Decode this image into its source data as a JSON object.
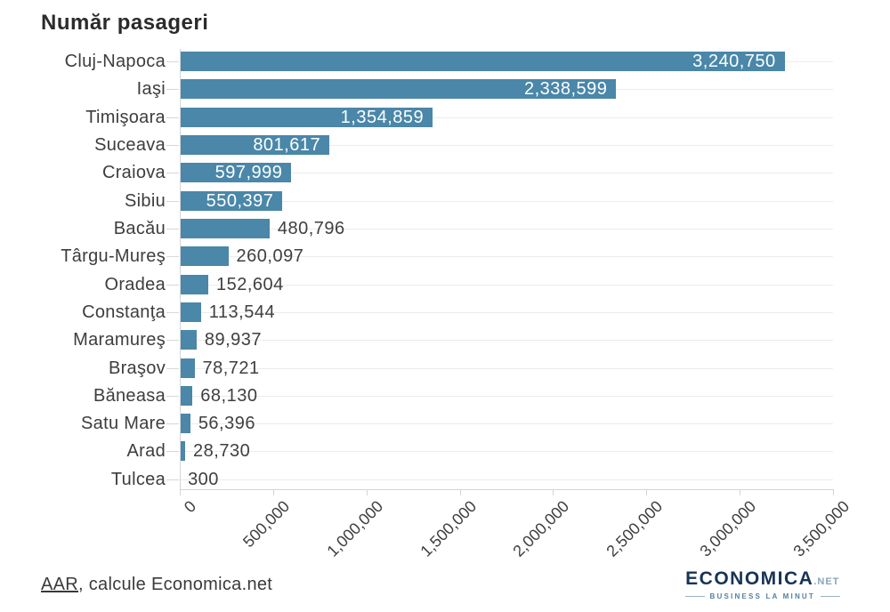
{
  "title": "Număr pasageri",
  "source": {
    "name": "AAR",
    "suffix": ", calcule Economica.net"
  },
  "logo": {
    "brand": "ECONOMICA",
    "net": ".NET",
    "tagline": "BUSINESS LA MINUT"
  },
  "chart_data": {
    "type": "bar",
    "orientation": "horizontal",
    "title": "Număr pasageri",
    "xlabel": "",
    "ylabel": "",
    "categories": [
      "Cluj-Napoca",
      "Iaşi",
      "Timişoara",
      "Suceava",
      "Craiova",
      "Sibiu",
      "Bacău",
      "Târgu-Mureş",
      "Oradea",
      "Constanţa",
      "Maramureş",
      "Braşov",
      "Băneasa",
      "Satu Mare",
      "Arad",
      "Tulcea"
    ],
    "values": [
      3240750,
      2338599,
      1354859,
      801617,
      597999,
      550397,
      480796,
      260097,
      152604,
      113544,
      89937,
      78721,
      68130,
      56396,
      28730,
      300
    ],
    "value_labels": [
      "3,240,750",
      "2,338,599",
      "1,354,859",
      "801,617",
      "597,999",
      "550,397",
      "480,796",
      "260,097",
      "152,604",
      "113,544",
      "89,937",
      "78,721",
      "68,130",
      "56,396",
      "28,730",
      "300"
    ],
    "xlim": [
      0,
      3500000
    ],
    "x_tick_values": [
      0,
      500000,
      1000000,
      1500000,
      2000000,
      2500000,
      3000000,
      3500000
    ],
    "x_tick_labels": [
      "0",
      "500,000",
      "1,000,000",
      "1,500,000",
      "2,000,000",
      "2,500,000",
      "3,000,000",
      "3,500,000"
    ],
    "grid": true,
    "legend": false,
    "bar_color": "#4a87a9",
    "inside_label_color": "#ffffff",
    "outside_label_color": "#3f3f3f"
  }
}
